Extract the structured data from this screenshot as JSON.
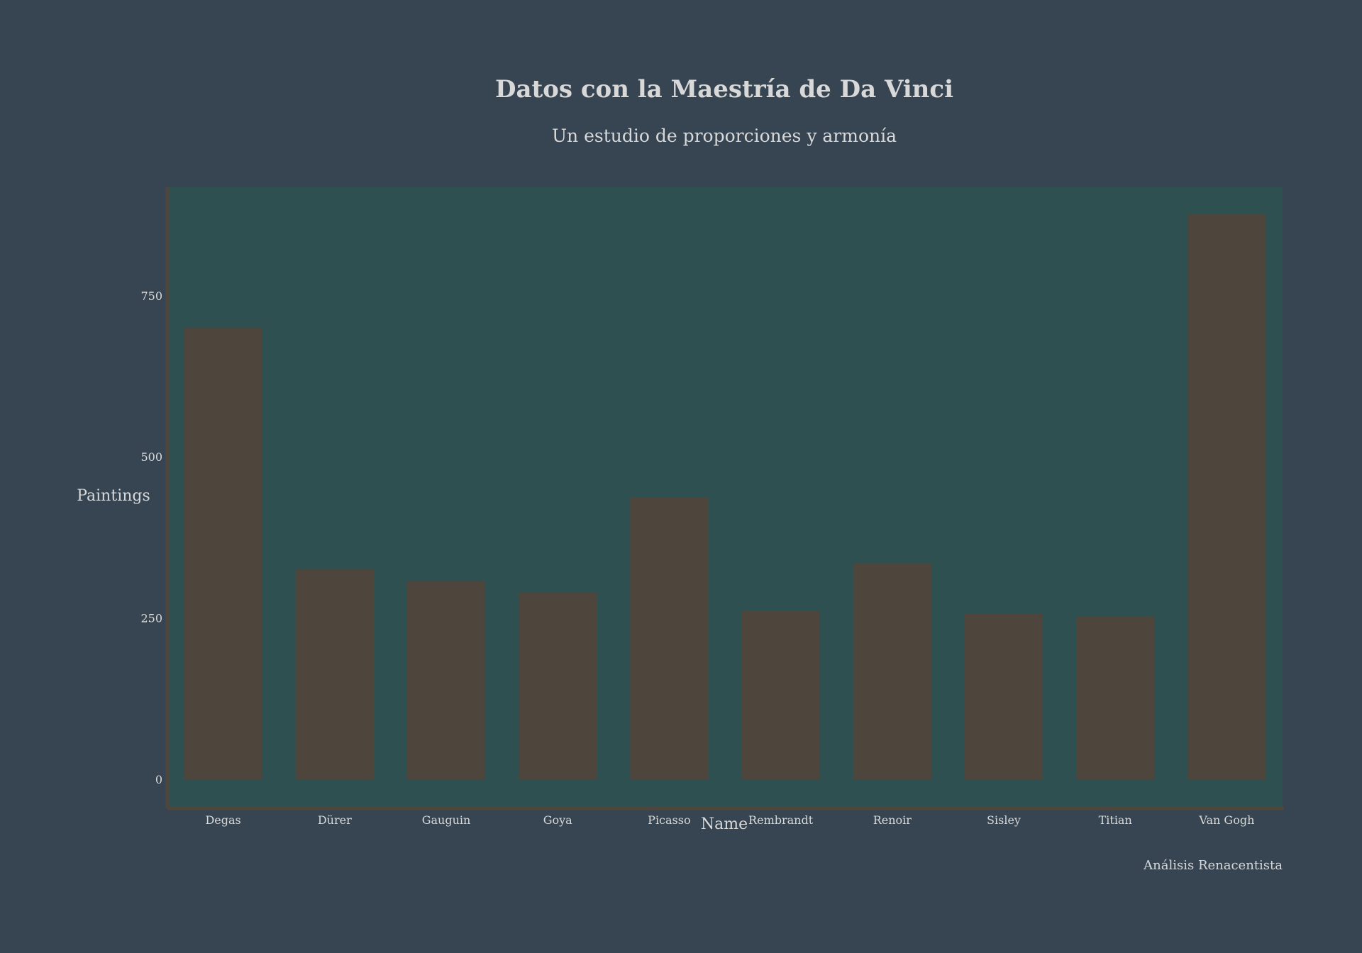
{
  "chart_data": {
    "type": "bar",
    "title": "Datos con la Maestría de Da Vinci",
    "subtitle": "Un estudio de proporciones y armonía",
    "xlabel": "Name",
    "ylabel": "Paintings",
    "caption": "Análisis Renacentista",
    "categories": [
      "Degas",
      "Dürer",
      "Gauguin",
      "Goya",
      "Picasso",
      "Rembrandt",
      "Renoir",
      "Sisley",
      "Titian",
      "Van Gogh"
    ],
    "values": [
      700,
      326,
      308,
      290,
      437,
      261,
      335,
      257,
      253,
      876
    ],
    "ylim": [
      -45,
      918
    ],
    "yticks": [
      0,
      250,
      500,
      750
    ],
    "grid": false,
    "colors": {
      "page_background": "#374552",
      "plot_background": "#2F5050",
      "bar": "#4E463D",
      "axis_line": "#4E463D",
      "text": "#D8D8D8"
    }
  }
}
